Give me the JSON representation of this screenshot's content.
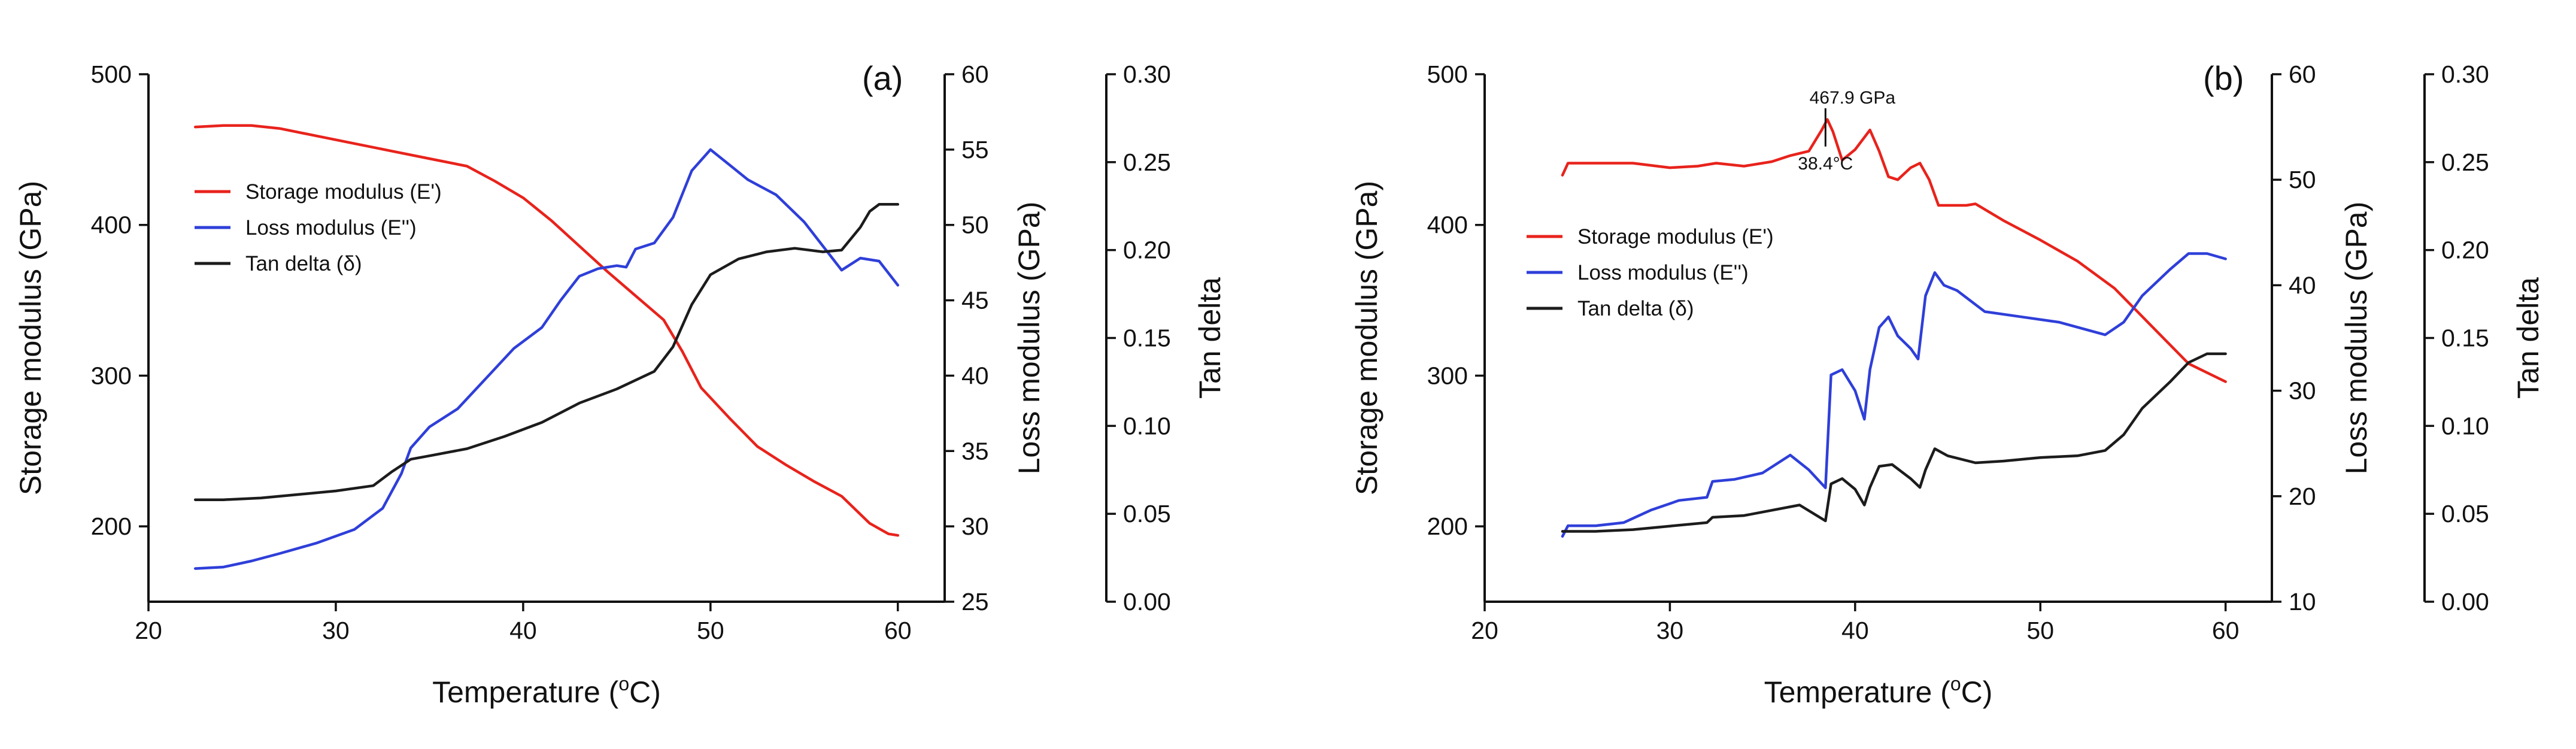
{
  "chart_data": [
    {
      "type": "line",
      "panel_label": "(a)",
      "xlabel": "Temperature (",
      "xlabel_sup": "o",
      "xlabel_end": "C)",
      "xlim": [
        20,
        62.5
      ],
      "xticks": [
        20,
        30,
        40,
        50,
        60
      ],
      "axes": {
        "left": {
          "label": "Storage modulus (GPa)",
          "lim": [
            150,
            500
          ],
          "ticks": [
            200,
            300,
            400,
            500
          ]
        },
        "right1": {
          "label": "Loss modulus (GPa)",
          "lim": [
            25,
            60
          ],
          "ticks": [
            25,
            30,
            35,
            40,
            45,
            50,
            55,
            60
          ]
        },
        "right2": {
          "label": "Tan delta",
          "lim": [
            0,
            0.3
          ],
          "ticks": [
            "0.00",
            "0.05",
            "0.10",
            "0.15",
            "0.20",
            "0.25",
            "0.30"
          ]
        }
      },
      "series": [
        {
          "name": "Storage modulus (E')",
          "color": "#e8231c",
          "axis": "left",
          "x": [
            22.5,
            24,
            25.5,
            27,
            29,
            31,
            33,
            35,
            37,
            38.5,
            40,
            41.5,
            43,
            44.5,
            46,
            47.5,
            48.5,
            49.5,
            51,
            52.5,
            54,
            55.5,
            57,
            58.5,
            59.5,
            60
          ],
          "y": [
            465,
            466,
            466,
            464,
            459,
            454,
            449,
            444,
            439,
            429,
            418,
            403,
            386,
            369,
            353,
            337,
            316,
            292,
            272,
            253,
            241,
            230,
            220,
            202,
            195,
            194
          ]
        },
        {
          "name": "Loss modulus (E'')",
          "color": "#2f3fd9",
          "axis": "right1",
          "x": [
            22.5,
            24,
            25.5,
            27,
            29,
            31,
            32.5,
            33.5,
            34,
            35,
            36.5,
            38,
            39.5,
            41,
            42,
            43,
            44,
            45,
            45.5,
            46,
            47,
            48,
            49,
            50,
            51,
            52,
            53.5,
            55,
            56,
            57,
            58,
            59,
            60
          ],
          "y": [
            27.2,
            27.3,
            27.7,
            28.2,
            28.9,
            29.8,
            31.2,
            33.5,
            35.2,
            36.6,
            37.8,
            39.8,
            41.8,
            43.2,
            45.0,
            46.6,
            47.1,
            47.3,
            47.2,
            48.4,
            48.8,
            50.5,
            53.6,
            55.0,
            54.0,
            53.0,
            52.0,
            50.2,
            48.6,
            47.0,
            47.8,
            47.6,
            46.0
          ]
        },
        {
          "name": "Tan delta (δ)",
          "color": "#1c1c1c",
          "axis": "right2",
          "x": [
            22.5,
            24,
            26,
            28,
            30,
            32,
            33,
            34,
            35,
            37,
            39,
            41,
            43,
            45,
            47,
            48,
            49,
            50,
            51.5,
            53,
            54.5,
            56,
            57,
            58,
            58.5,
            59,
            60
          ],
          "y": [
            0.058,
            0.058,
            0.059,
            0.061,
            0.063,
            0.066,
            0.074,
            0.081,
            0.083,
            0.087,
            0.094,
            0.102,
            0.113,
            0.121,
            0.131,
            0.145,
            0.169,
            0.186,
            0.195,
            0.199,
            0.201,
            0.199,
            0.2,
            0.213,
            0.222,
            0.226,
            0.226
          ]
        }
      ],
      "legend": "middle-left"
    },
    {
      "type": "line",
      "panel_label": "(b)",
      "xlabel": "Temperature (",
      "xlabel_sup": "o",
      "xlabel_end": "C)",
      "xlim": [
        20,
        62.5
      ],
      "xticks": [
        20,
        30,
        40,
        50,
        60
      ],
      "axes": {
        "left": {
          "label": "Storage modulus (GPa)",
          "lim": [
            150,
            500
          ],
          "ticks": [
            200,
            300,
            400,
            500
          ]
        },
        "right1": {
          "label": "Loss modulus (GPa)",
          "lim": [
            10,
            60
          ],
          "ticks": [
            10,
            20,
            30,
            40,
            50,
            60
          ]
        },
        "right2": {
          "label": "Tan delta",
          "lim": [
            0,
            0.3
          ],
          "ticks": [
            "0.00",
            "0.05",
            "0.10",
            "0.15",
            "0.20",
            "0.25",
            "0.30"
          ]
        }
      },
      "annotation": {
        "text_top": "467.9 GPa",
        "text_bottom": "38.4°C",
        "x": 38.4,
        "y": 467.9
      },
      "series": [
        {
          "name": "Storage modulus (E')",
          "color": "#e8231c",
          "axis": "left",
          "x": [
            24.2,
            24.5,
            26,
            28,
            30,
            31.5,
            32.5,
            34,
            35.5,
            36.5,
            37.5,
            38.2,
            38.5,
            38.8,
            39.3,
            40,
            40.8,
            41.3,
            41.8,
            42.3,
            43,
            43.5,
            44,
            44.5,
            46,
            46.5,
            48,
            50,
            52,
            54,
            56,
            58,
            60
          ],
          "y": [
            433,
            441,
            441,
            441,
            438,
            439,
            441,
            439,
            442,
            446,
            449,
            463,
            470,
            462,
            443,
            450,
            463,
            449,
            432,
            430,
            438,
            441,
            430,
            413,
            413,
            414,
            403,
            390,
            376,
            358,
            333,
            308,
            296
          ]
        },
        {
          "name": "Loss modulus (E'')",
          "color": "#2f3fd9",
          "axis": "right1",
          "x": [
            24.2,
            24.5,
            26,
            27.5,
            29,
            30.5,
            32,
            32.3,
            33.5,
            35,
            36.5,
            37.5,
            38.4,
            38.7,
            39.3,
            40,
            40.5,
            40.8,
            41.3,
            41.8,
            42.3,
            43,
            43.4,
            43.8,
            44.3,
            44.8,
            45.5,
            47,
            49,
            51,
            53.5,
            54.5,
            55.5,
            57,
            58,
            59,
            60
          ],
          "y": [
            16.2,
            17.2,
            17.2,
            17.5,
            18.7,
            19.6,
            19.9,
            21.4,
            21.6,
            22.2,
            23.9,
            22.5,
            20.8,
            31.5,
            32.0,
            30.0,
            27.3,
            32.0,
            36.0,
            37.0,
            35.2,
            34.0,
            33.0,
            39.0,
            41.2,
            40.0,
            39.5,
            37.5,
            37.0,
            36.5,
            35.3,
            36.5,
            39.0,
            41.5,
            43.0,
            43.0,
            42.5
          ]
        },
        {
          "name": "Tan delta (δ)",
          "color": "#1c1c1c",
          "axis": "right2",
          "x": [
            24.2,
            26,
            28,
            30,
            32,
            32.3,
            34,
            35.5,
            37,
            38.4,
            38.7,
            39.3,
            40,
            40.5,
            40.8,
            41.3,
            42,
            43,
            43.5,
            43.8,
            44.3,
            45,
            46.5,
            48,
            50,
            52,
            53.5,
            54.5,
            55.5,
            57,
            58,
            59,
            60
          ],
          "y": [
            0.04,
            0.04,
            0.041,
            0.043,
            0.045,
            0.048,
            0.049,
            0.052,
            0.055,
            0.046,
            0.067,
            0.07,
            0.064,
            0.055,
            0.065,
            0.077,
            0.078,
            0.07,
            0.065,
            0.075,
            0.087,
            0.083,
            0.079,
            0.08,
            0.082,
            0.083,
            0.086,
            0.095,
            0.11,
            0.125,
            0.136,
            0.141,
            0.141
          ]
        }
      ],
      "legend": "middle-left"
    }
  ]
}
